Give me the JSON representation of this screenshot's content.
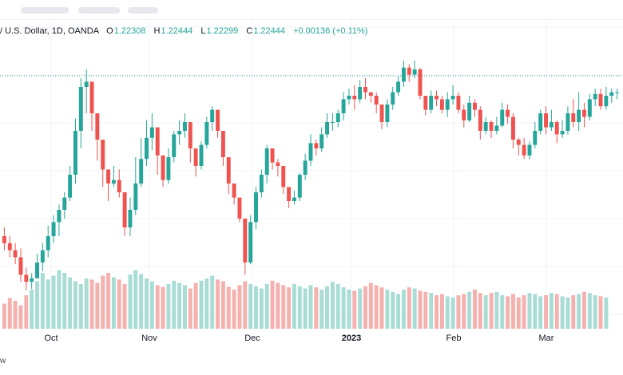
{
  "legend": {
    "symbol": "/ U.S. Dollar, 1D, OANDA",
    "open_label": "O",
    "open": "1.22308",
    "high_label": "H",
    "high": "1.22444",
    "low_label": "L",
    "low": "1.22299",
    "close_label": "C",
    "close": "1.22444",
    "change": "+0.00136 (+0.11%)"
  },
  "xaxis": {
    "labels": [
      "Oct",
      "Nov",
      "Dec",
      "2023",
      "Feb",
      "Mar"
    ]
  },
  "footer": {
    "text": "w"
  },
  "colors": {
    "up": "#26a69a",
    "down": "#ef5350",
    "vol_up": "#a8dcd5",
    "vol_down": "#f4b1ae",
    "grid": "#f0f3fa",
    "price_line": "#26a69a"
  },
  "chart_data": {
    "type": "candlestick",
    "x_ticks": [
      "Oct",
      "Nov",
      "Dec",
      "2023",
      "Feb",
      "Mar"
    ],
    "series": [
      {
        "name": "price",
        "values": [
          [
            240,
            236,
            245,
            232
          ],
          [
            236,
            232,
            240,
            228
          ],
          [
            232,
            228,
            236,
            224
          ],
          [
            228,
            218,
            233,
            214
          ],
          [
            218,
            214,
            222,
            209
          ],
          [
            214,
            216,
            219,
            210
          ],
          [
            216,
            225,
            230,
            222
          ],
          [
            225,
            232,
            236,
            220
          ],
          [
            232,
            240,
            246,
            228
          ],
          [
            240,
            248,
            252,
            236
          ],
          [
            248,
            255,
            258,
            240
          ],
          [
            255,
            262,
            265,
            250
          ],
          [
            262,
            275,
            280,
            260
          ],
          [
            275,
            300,
            307,
            270
          ],
          [
            300,
            325,
            330,
            290
          ],
          [
            325,
            328,
            335,
            310
          ],
          [
            328,
            310,
            315,
            300
          ],
          [
            310,
            295,
            300,
            283
          ],
          [
            295,
            278,
            282,
            268
          ],
          [
            278,
            270,
            275,
            260
          ],
          [
            270,
            272,
            280,
            268
          ],
          [
            272,
            265,
            278,
            262
          ],
          [
            265,
            245,
            258,
            240
          ],
          [
            245,
            255,
            262,
            240
          ],
          [
            255,
            270,
            285,
            252
          ],
          [
            270,
            284,
            296,
            268
          ],
          [
            284,
            296,
            306,
            280
          ],
          [
            296,
            302,
            310,
            289
          ],
          [
            302,
            286,
            290,
            275
          ],
          [
            286,
            272,
            278,
            268
          ],
          [
            272,
            285,
            290,
            270
          ],
          [
            285,
            298,
            300,
            282
          ],
          [
            298,
            300,
            306,
            292
          ],
          [
            300,
            305,
            310,
            296
          ],
          [
            305,
            290,
            295,
            282
          ],
          [
            290,
            280,
            284,
            274
          ],
          [
            280,
            292,
            294,
            278
          ],
          [
            292,
            305,
            308,
            290
          ],
          [
            305,
            312,
            314,
            300
          ],
          [
            312,
            300,
            305,
            296
          ],
          [
            300,
            285,
            292,
            280
          ],
          [
            285,
            270,
            275,
            264
          ],
          [
            270,
            262,
            268,
            258
          ],
          [
            262,
            250,
            258,
            248
          ],
          [
            250,
            225,
            236,
            218
          ],
          [
            225,
            248,
            252,
            224
          ],
          [
            248,
            265,
            268,
            244
          ],
          [
            265,
            275,
            278,
            262
          ],
          [
            275,
            290,
            292,
            270
          ],
          [
            290,
            282,
            288,
            278
          ],
          [
            282,
            280,
            284,
            274
          ],
          [
            280,
            268,
            272,
            264
          ],
          [
            268,
            260,
            264,
            256
          ],
          [
            260,
            262,
            266,
            258
          ],
          [
            262,
            275,
            276,
            260
          ],
          [
            275,
            283,
            287,
            272
          ],
          [
            283,
            293,
            298,
            280
          ],
          [
            293,
            290,
            295,
            286
          ],
          [
            290,
            298,
            302,
            288
          ],
          [
            298,
            305,
            310,
            296
          ],
          [
            305,
            305,
            310,
            300
          ],
          [
            305,
            310,
            312,
            302
          ],
          [
            310,
            318,
            322,
            306
          ],
          [
            318,
            320,
            324,
            315
          ],
          [
            320,
            318,
            326,
            312
          ],
          [
            318,
            325,
            329,
            316
          ],
          [
            325,
            322,
            330,
            318
          ],
          [
            322,
            320,
            322,
            316
          ],
          [
            320,
            315,
            322,
            310
          ],
          [
            315,
            305,
            310,
            301
          ],
          [
            305,
            315,
            318,
            302
          ],
          [
            315,
            322,
            325,
            312
          ],
          [
            322,
            328,
            331,
            320
          ],
          [
            328,
            336,
            340,
            325
          ],
          [
            336,
            332,
            338,
            328
          ],
          [
            332,
            335,
            340,
            330
          ],
          [
            335,
            320,
            336,
            318
          ],
          [
            320,
            312,
            318,
            309
          ],
          [
            312,
            320,
            323,
            310
          ],
          [
            320,
            318,
            323,
            314
          ],
          [
            318,
            312,
            320,
            310
          ],
          [
            312,
            318,
            322,
            308
          ],
          [
            318,
            320,
            326,
            315
          ],
          [
            320,
            312,
            322,
            310
          ],
          [
            312,
            306,
            315,
            302
          ],
          [
            306,
            316,
            320,
            305
          ],
          [
            316,
            312,
            318,
            308
          ],
          [
            312,
            300,
            314,
            295
          ],
          [
            300,
            305,
            308,
            298
          ],
          [
            305,
            300,
            306,
            296
          ],
          [
            300,
            303,
            308,
            298
          ],
          [
            303,
            312,
            316,
            302
          ],
          [
            312,
            308,
            315,
            304
          ],
          [
            308,
            295,
            310,
            290
          ],
          [
            295,
            292,
            296,
            286
          ],
          [
            292,
            286,
            296,
            284
          ],
          [
            286,
            292,
            294,
            284
          ],
          [
            292,
            300,
            305,
            290
          ],
          [
            300,
            310,
            312,
            298
          ],
          [
            310,
            302,
            314,
            298
          ],
          [
            302,
            305,
            312,
            300
          ],
          [
            305,
            298,
            306,
            293
          ],
          [
            298,
            300,
            306,
            296
          ],
          [
            300,
            310,
            314,
            298
          ],
          [
            310,
            305,
            318,
            302
          ],
          [
            305,
            312,
            322,
            300
          ],
          [
            312,
            308,
            316,
            302
          ],
          [
            308,
            318,
            321,
            306
          ],
          [
            318,
            321,
            324,
            314
          ],
          [
            321,
            314,
            324,
            312
          ],
          [
            314,
            320,
            325,
            312
          ],
          [
            320,
            322,
            324,
            316
          ],
          [
            322,
            322,
            324,
            318
          ]
        ]
      },
      {
        "name": "volume",
        "values": [
          0.45,
          0.55,
          0.5,
          0.42,
          0.6,
          0.7,
          0.85,
          1.0,
          0.88,
          0.95,
          1.05,
          1.0,
          0.92,
          0.85,
          0.8,
          0.9,
          0.88,
          0.82,
          0.95,
          1.0,
          0.92,
          0.88,
          0.8,
          0.97,
          1.05,
          0.98,
          0.9,
          0.85,
          0.78,
          0.75,
          0.8,
          0.86,
          0.82,
          0.78,
          0.72,
          0.82,
          0.86,
          0.9,
          0.95,
          0.88,
          0.85,
          0.75,
          0.7,
          0.78,
          0.85,
          0.8,
          0.76,
          0.72,
          0.8,
          0.86,
          0.82,
          0.78,
          0.74,
          0.8,
          0.76,
          0.72,
          0.78,
          0.74,
          0.7,
          0.76,
          0.84,
          0.8,
          0.74,
          0.7,
          0.68,
          0.72,
          0.76,
          0.82,
          0.78,
          0.74,
          0.7,
          0.66,
          0.62,
          0.7,
          0.74,
          0.72,
          0.68,
          0.66,
          0.64,
          0.6,
          0.62,
          0.58,
          0.56,
          0.6,
          0.62,
          0.66,
          0.7,
          0.64,
          0.6,
          0.64,
          0.66,
          0.6,
          0.58,
          0.62,
          0.56,
          0.6,
          0.64,
          0.62,
          0.58,
          0.6,
          0.64,
          0.62,
          0.58,
          0.56,
          0.6,
          0.62,
          0.66,
          0.64,
          0.6,
          0.58,
          0.56
        ]
      }
    ],
    "last_price": 1.22444,
    "grid": true
  }
}
